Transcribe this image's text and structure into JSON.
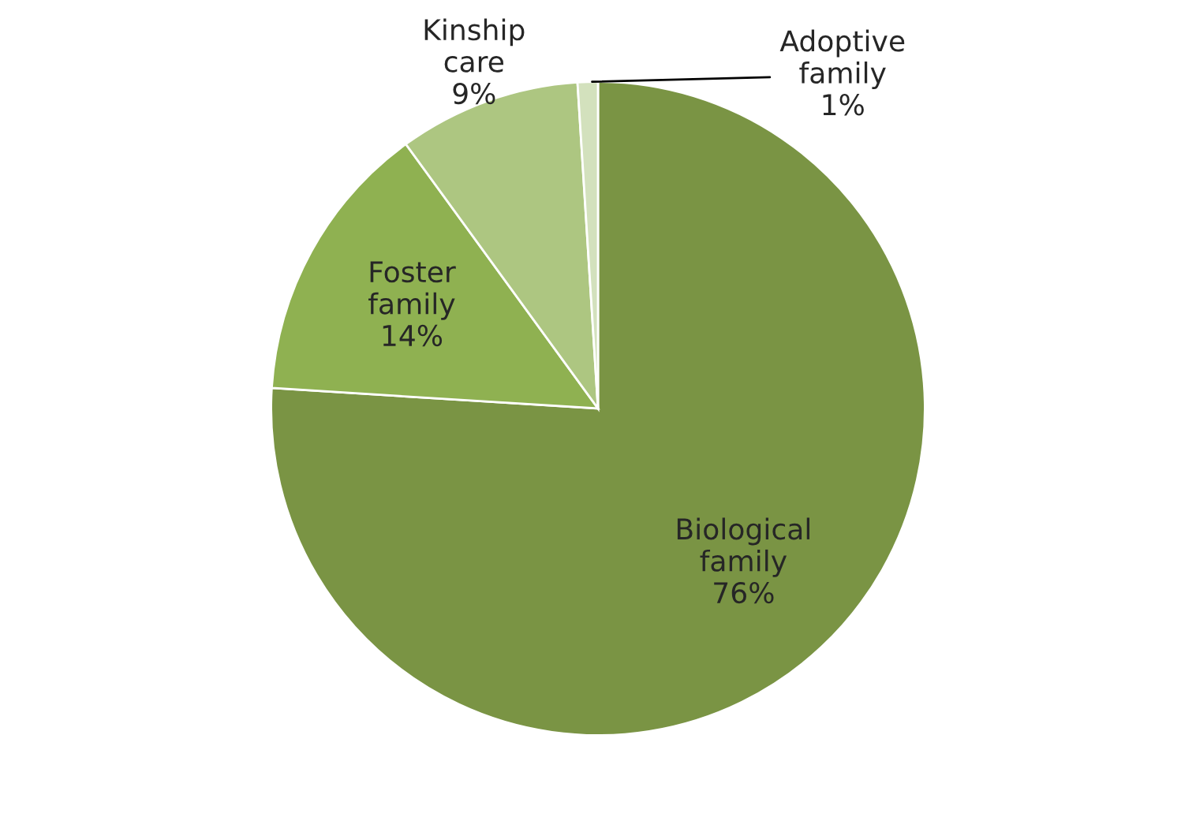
{
  "chart_data": {
    "type": "pie",
    "categories": [
      "Biological family",
      "Foster family",
      "Kinship care",
      "Adoptive family"
    ],
    "values": [
      76,
      14,
      9,
      1
    ],
    "colors": [
      "#7a9444",
      "#8fb151",
      "#adc681",
      "#d3e1bd"
    ],
    "value_labels": [
      "76%",
      "14%",
      "9%",
      "1%"
    ],
    "legend": false
  }
}
